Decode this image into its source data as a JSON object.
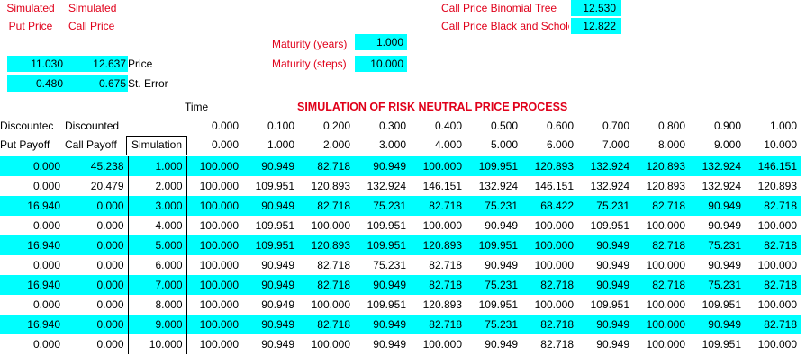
{
  "header": {
    "sim_put_line1": "Simulated",
    "sim_put_line2": "Put Price",
    "sim_call_line1": "Simulated",
    "sim_call_line2": "Call Price",
    "put_price_value": "11.030",
    "call_price_value": "12.637",
    "price_label": "Price",
    "put_st_error": "0.480",
    "call_st_error": "0.675",
    "st_error_label": "St. Error",
    "maturity_years_label": "Maturity (years)",
    "maturity_years_value": "1.000",
    "maturity_steps_label": "Maturity (steps)",
    "maturity_steps_value": "10.000",
    "binomial_label": "Call  Price Binomial Tree",
    "binomial_value": "12.530",
    "bs_label": "Call  Price Black and Schole",
    "bs_value": "12.822",
    "time_label": "Time",
    "section_title": "SIMULATION OF RISK NEUTRAL PRICE PROCESS",
    "disc_put_line1": "Discountec",
    "disc_put_line2": "Put Payoff",
    "disc_call_line1": "Discounted",
    "disc_call_line2": "Call Payoff",
    "simulation_label": "Simulation"
  },
  "time_values": [
    "0.000",
    "0.100",
    "0.200",
    "0.300",
    "0.400",
    "0.500",
    "0.600",
    "0.700",
    "0.800",
    "0.900",
    "1.000"
  ],
  "step_values": [
    "0.000",
    "1.000",
    "2.000",
    "3.000",
    "4.000",
    "5.000",
    "6.000",
    "7.000",
    "8.000",
    "9.000",
    "10.000"
  ],
  "rows": [
    {
      "put": "0.000",
      "call": "45.238",
      "sim": "1.000",
      "path": [
        "100.000",
        "90.949",
        "82.718",
        "90.949",
        "100.000",
        "109.951",
        "120.893",
        "132.924",
        "120.893",
        "132.924",
        "146.151"
      ]
    },
    {
      "put": "0.000",
      "call": "20.479",
      "sim": "2.000",
      "path": [
        "100.000",
        "109.951",
        "120.893",
        "132.924",
        "146.151",
        "132.924",
        "146.151",
        "132.924",
        "120.893",
        "132.924",
        "120.893"
      ]
    },
    {
      "put": "16.940",
      "call": "0.000",
      "sim": "3.000",
      "path": [
        "100.000",
        "90.949",
        "82.718",
        "75.231",
        "82.718",
        "75.231",
        "68.422",
        "75.231",
        "82.718",
        "90.949",
        "82.718"
      ]
    },
    {
      "put": "0.000",
      "call": "0.000",
      "sim": "4.000",
      "path": [
        "100.000",
        "109.951",
        "100.000",
        "109.951",
        "100.000",
        "90.949",
        "100.000",
        "109.951",
        "100.000",
        "90.949",
        "100.000"
      ]
    },
    {
      "put": "16.940",
      "call": "0.000",
      "sim": "5.000",
      "path": [
        "100.000",
        "109.951",
        "120.893",
        "109.951",
        "120.893",
        "109.951",
        "100.000",
        "90.949",
        "82.718",
        "75.231",
        "82.718"
      ]
    },
    {
      "put": "0.000",
      "call": "0.000",
      "sim": "6.000",
      "path": [
        "100.000",
        "90.949",
        "82.718",
        "75.231",
        "82.718",
        "90.949",
        "100.000",
        "90.949",
        "100.000",
        "90.949",
        "100.000"
      ]
    },
    {
      "put": "16.940",
      "call": "0.000",
      "sim": "7.000",
      "path": [
        "100.000",
        "90.949",
        "82.718",
        "90.949",
        "82.718",
        "75.231",
        "82.718",
        "90.949",
        "82.718",
        "75.231",
        "82.718"
      ]
    },
    {
      "put": "0.000",
      "call": "0.000",
      "sim": "8.000",
      "path": [
        "100.000",
        "90.949",
        "100.000",
        "109.951",
        "120.893",
        "109.951",
        "100.000",
        "109.951",
        "100.000",
        "109.951",
        "100.000"
      ]
    },
    {
      "put": "16.940",
      "call": "0.000",
      "sim": "9.000",
      "path": [
        "100.000",
        "90.949",
        "82.718",
        "90.949",
        "82.718",
        "75.231",
        "82.718",
        "90.949",
        "100.000",
        "90.949",
        "82.718"
      ]
    },
    {
      "put": "0.000",
      "call": "0.000",
      "sim": "10.000",
      "path": [
        "100.000",
        "90.949",
        "100.000",
        "90.949",
        "100.000",
        "90.949",
        "82.718",
        "90.949",
        "100.000",
        "109.951",
        "100.000"
      ]
    }
  ],
  "colors": {
    "accent_cyan": "#00ffff",
    "label_red": "#e0001a"
  }
}
